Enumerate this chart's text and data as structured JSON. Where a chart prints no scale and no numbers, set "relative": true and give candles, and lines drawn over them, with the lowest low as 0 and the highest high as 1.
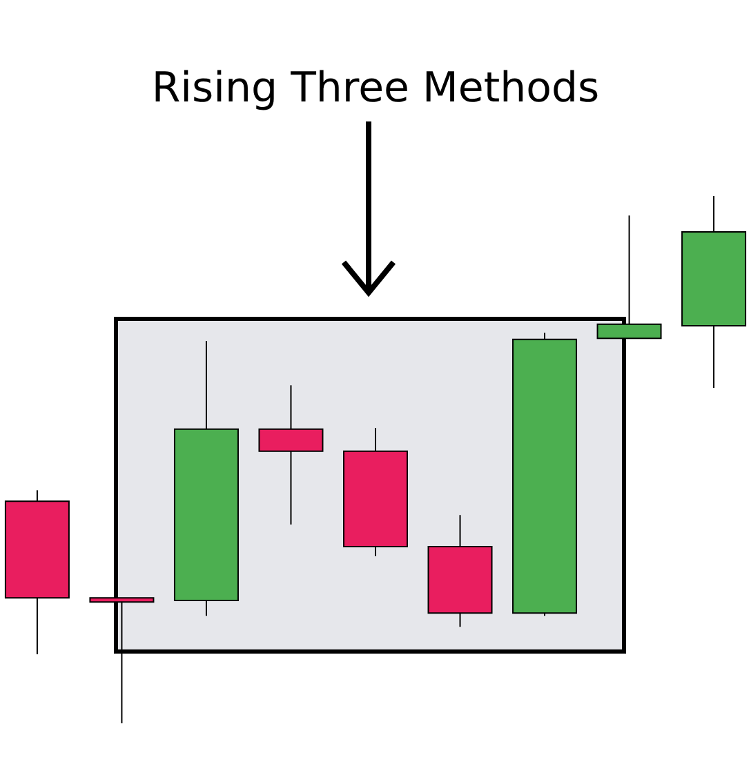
{
  "chart_data": {
    "type": "candlestick",
    "title": "Rising Three Methods",
    "relative": true,
    "categories": [
      null,
      null,
      null,
      null,
      null,
      null,
      null,
      null,
      null
    ],
    "ohlc": [
      [
        0.421,
        0.442,
        0.131,
        0.238
      ],
      [
        0.238,
        0.238,
        0,
        0.23
      ],
      [
        0.233,
        0.725,
        0.204,
        0.558
      ],
      [
        0.558,
        0.641,
        0.377,
        0.516
      ],
      [
        0.516,
        0.56,
        0.317,
        0.335
      ],
      [
        0.335,
        0.395,
        0.183,
        0.209
      ],
      [
        0.209,
        0.741,
        0.204,
        0.728
      ],
      [
        0.73,
        0.963,
        0.73,
        0.757
      ],
      [
        0.754,
        1,
        0.636,
        0.932
      ]
    ],
    "colors": [
      "#e91e5f",
      "#e91e5f",
      "#4caf50",
      "#e91e5f",
      "#e91e5f",
      "#e91e5f",
      "#4caf50",
      "#4caf50",
      "#4caf50"
    ]
  }
}
